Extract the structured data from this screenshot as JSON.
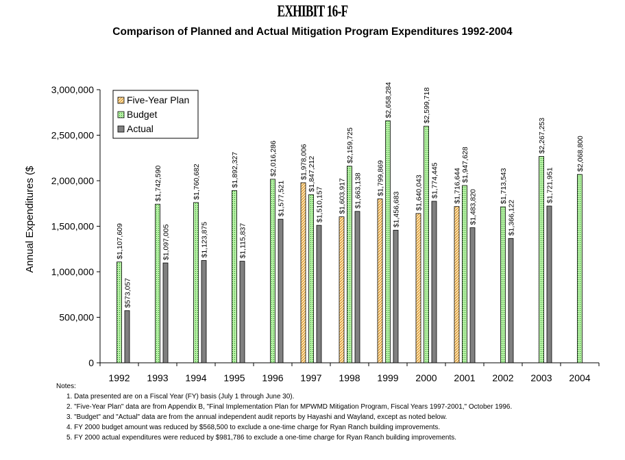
{
  "header": {
    "exhibit": "EXHIBIT 16-F",
    "subtitle": "Comparison of Planned and Actual Mitigation Program Expenditures 1992-2004"
  },
  "colors": {
    "plan_fill": "#ffe4b0",
    "plan_stroke": "#c87800",
    "budget_fill": "#b6f0a4",
    "budget_stroke": "#1a8a1a",
    "actual_fill": "#808080",
    "actual_stroke": "#303030"
  },
  "chart_data": {
    "type": "bar",
    "title": "",
    "xlabel": "",
    "ylabel": "Annual Expenditures ($",
    "ylim": [
      0,
      3000000
    ],
    "yticks": [
      0,
      500000,
      1000000,
      1500000,
      2000000,
      2500000,
      3000000
    ],
    "ytick_labels": [
      "0",
      "500,000",
      "1,000,000",
      "1,500,000",
      "2,000,000",
      "2,500,000",
      "3,000,000"
    ],
    "grid": false,
    "legend_position": "top-left",
    "categories": [
      "1992",
      "1993",
      "1994",
      "1995",
      "1996",
      "1997",
      "1998",
      "1999",
      "2000",
      "2001",
      "2002",
      "2003",
      "2004"
    ],
    "series": [
      {
        "name": "Five-Year Plan",
        "values": [
          null,
          null,
          null,
          null,
          null,
          1978006,
          1603917,
          1799869,
          1640043,
          1716644,
          null,
          null,
          null
        ],
        "labels": [
          "",
          "",
          "",
          "",
          "",
          "$1,978,006",
          "$1,603,917",
          "$1,799,869",
          "$1,640,043",
          "$1,716,644",
          "",
          "",
          ""
        ]
      },
      {
        "name": "Budget",
        "values": [
          1107609,
          1742590,
          1760682,
          1892327,
          2016286,
          1847212,
          2159725,
          2658284,
          2599718,
          1947628,
          1713543,
          2267253,
          2068800
        ],
        "labels": [
          "$1,107,609",
          "$1,742,590",
          "$1,760,682",
          "$1,892,327",
          "$2,016,286",
          "$1,847,212",
          "$2,159,725",
          "$2,658,284",
          "$2,599,718",
          "$1,947,628",
          "$1,713,543",
          "$2,267,253",
          "$2,068,800"
        ]
      },
      {
        "name": "Actual",
        "values": [
          573057,
          1097005,
          1123875,
          1115837,
          1577521,
          1510157,
          1663138,
          1456683,
          1774445,
          1483820,
          1366122,
          1721951,
          null
        ],
        "labels": [
          "$573,057",
          "$1,097,005",
          "$1,123,875",
          "$1,115,837",
          "$1,577,521",
          "$1,510,157",
          "$1,663,138",
          "$1,456,683",
          "$1,774,445",
          "$1,483,820",
          "$1,366,122",
          "$1,721,951",
          ""
        ]
      }
    ]
  },
  "notes": {
    "heading": "Notes:",
    "items": [
      "1.  Data presented are on a Fiscal Year (FY) basis (July 1 through June 30).",
      "2.  \"Five-Year Plan\" data are from Appendix B, \"Final Implementation Plan for MPWMD Mitigation Program, Fiscal Years 1997-2001,\" October 1996.",
      "3.  \"Budget\" and \"Actual\" data are from the annual independent audit reports by Hayashi and Wayland, except as noted below.",
      "4.  FY 2000 budget amount was reduced by $568,500 to exclude a one-time charge for Ryan Ranch building improvements.",
      "5.  FY 2000 actual expenditures were reduced by $981,786 to exclude a one-time charge for Ryan Ranch building improvements."
    ]
  }
}
